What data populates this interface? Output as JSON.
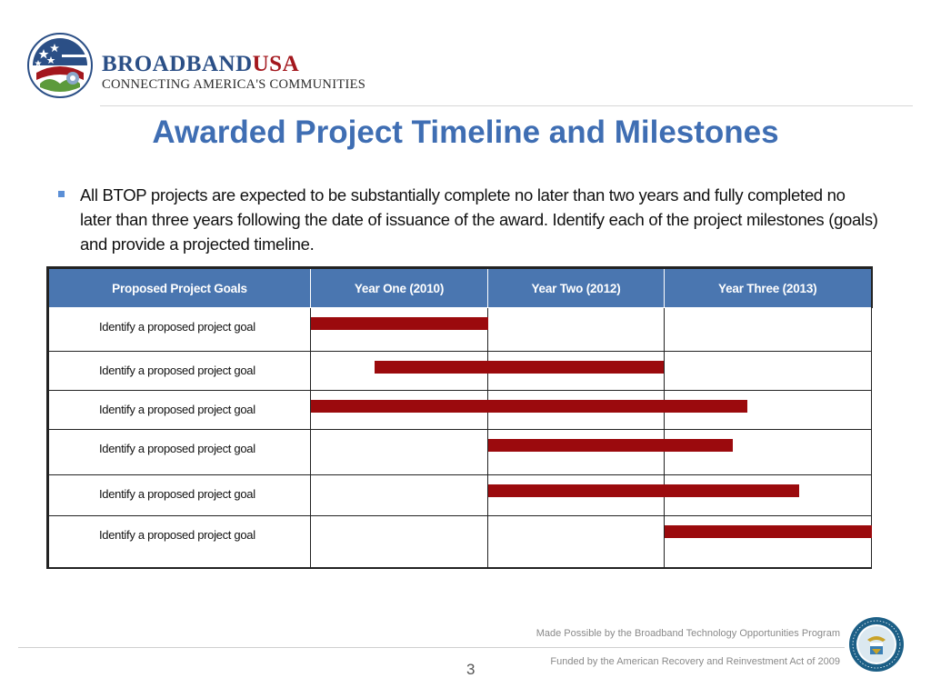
{
  "header": {
    "brand_main": "BROADBAND",
    "brand_accent": "USA",
    "tagline": "CONNECTING AMERICA'S COMMUNITIES",
    "logo_badge": "RECOVERY.GOV"
  },
  "title": "Awarded Project Timeline and Milestones",
  "bullet": "All BTOP projects are expected to be substantially complete no later than two years and fully completed no later than three years following the date of issuance of the award.  Identify each of the project milestones (goals) and provide a projected timeline.",
  "table": {
    "headers": [
      "Proposed Project Goals",
      "Year One (2010)",
      "Year Two (2012)",
      "Year Three (2013)"
    ],
    "rows": [
      {
        "goal": "Identify a proposed project goal",
        "start": 0.0,
        "end": 1.0
      },
      {
        "goal": "Identify a proposed project goal",
        "start": 0.36,
        "end": 2.0
      },
      {
        "goal": "Identify a proposed project goal",
        "start": 0.0,
        "end": 2.4
      },
      {
        "goal": "Identify a proposed project goal",
        "start": 1.0,
        "end": 2.33
      },
      {
        "goal": "Identify a proposed project goal",
        "start": 1.0,
        "end": 2.65
      },
      {
        "goal": "Identify a proposed project goal",
        "start": 2.0,
        "end": 3.0
      }
    ],
    "bar_color": "#9b0a0d",
    "header_color": "#4a76b0"
  },
  "footer": {
    "made_possible": "Made Possible by the Broadband Technology Opportunities Program",
    "funded": "Funded by the American Recovery and Reinvestment Act of 2009",
    "page_number": "3"
  },
  "icons": {
    "logo": "recovery-logo-icon",
    "seal": "department-of-commerce-seal-icon"
  }
}
